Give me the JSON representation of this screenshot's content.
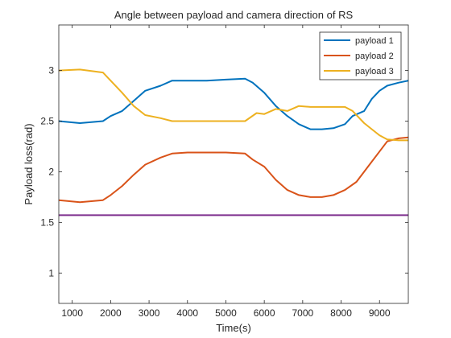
{
  "chart_data": {
    "type": "line",
    "title": "Angle between payload and camera direction of RS",
    "xlabel": "Time(s)",
    "ylabel": "Payload loss(rad)",
    "xlim": [
      650,
      9750
    ],
    "ylim": [
      0.7,
      3.45
    ],
    "xticks": [
      1000,
      2000,
      3000,
      4000,
      5000,
      6000,
      7000,
      8000,
      9000
    ],
    "yticks": [
      1,
      1.5,
      2,
      2.5,
      3
    ],
    "ytick_labels": [
      "1",
      "1.5",
      "2",
      "2.5",
      "3"
    ],
    "grid": false,
    "legend_position": "top-right",
    "series": [
      {
        "name": "payload 1",
        "color": "#0072BD",
        "x": [
          650,
          1200,
          1800,
          2000,
          2300,
          2600,
          2900,
          3300,
          3600,
          4000,
          4500,
          5000,
          5500,
          5700,
          6000,
          6300,
          6600,
          6900,
          7200,
          7500,
          7800,
          8100,
          8300,
          8600,
          8800,
          9000,
          9200,
          9500,
          9750
        ],
        "y": [
          2.5,
          2.48,
          2.5,
          2.55,
          2.6,
          2.7,
          2.8,
          2.85,
          2.9,
          2.9,
          2.9,
          2.91,
          2.92,
          2.88,
          2.78,
          2.65,
          2.55,
          2.47,
          2.42,
          2.42,
          2.43,
          2.47,
          2.55,
          2.6,
          2.72,
          2.8,
          2.85,
          2.88,
          2.9
        ]
      },
      {
        "name": "payload 2",
        "color": "#D95319",
        "x": [
          650,
          1200,
          1800,
          2000,
          2300,
          2600,
          2900,
          3300,
          3600,
          4000,
          4500,
          5000,
          5500,
          5700,
          6000,
          6300,
          6600,
          6900,
          7200,
          7500,
          7800,
          8100,
          8400,
          8700,
          9000,
          9200,
          9500,
          9750
        ],
        "y": [
          1.72,
          1.7,
          1.72,
          1.77,
          1.86,
          1.97,
          2.07,
          2.14,
          2.18,
          2.19,
          2.19,
          2.19,
          2.18,
          2.12,
          2.05,
          1.92,
          1.82,
          1.77,
          1.75,
          1.75,
          1.77,
          1.82,
          1.9,
          2.05,
          2.2,
          2.3,
          2.33,
          2.34
        ]
      },
      {
        "name": "payload 3",
        "color": "#EDB120",
        "x": [
          650,
          1200,
          1800,
          2000,
          2300,
          2600,
          2900,
          3300,
          3600,
          4000,
          4500,
          5000,
          5500,
          5800,
          6000,
          6300,
          6600,
          6900,
          7200,
          7500,
          7800,
          8100,
          8300,
          8600,
          8800,
          9000,
          9200,
          9500,
          9750
        ],
        "y": [
          3.0,
          3.01,
          2.98,
          2.9,
          2.78,
          2.65,
          2.56,
          2.53,
          2.5,
          2.5,
          2.5,
          2.5,
          2.5,
          2.58,
          2.57,
          2.62,
          2.6,
          2.65,
          2.64,
          2.64,
          2.64,
          2.64,
          2.6,
          2.48,
          2.42,
          2.36,
          2.32,
          2.31,
          2.31
        ]
      },
      {
        "name": "",
        "color": "#7E2F8E",
        "x": [
          650,
          9750
        ],
        "y": [
          1.571,
          1.571
        ]
      }
    ]
  }
}
